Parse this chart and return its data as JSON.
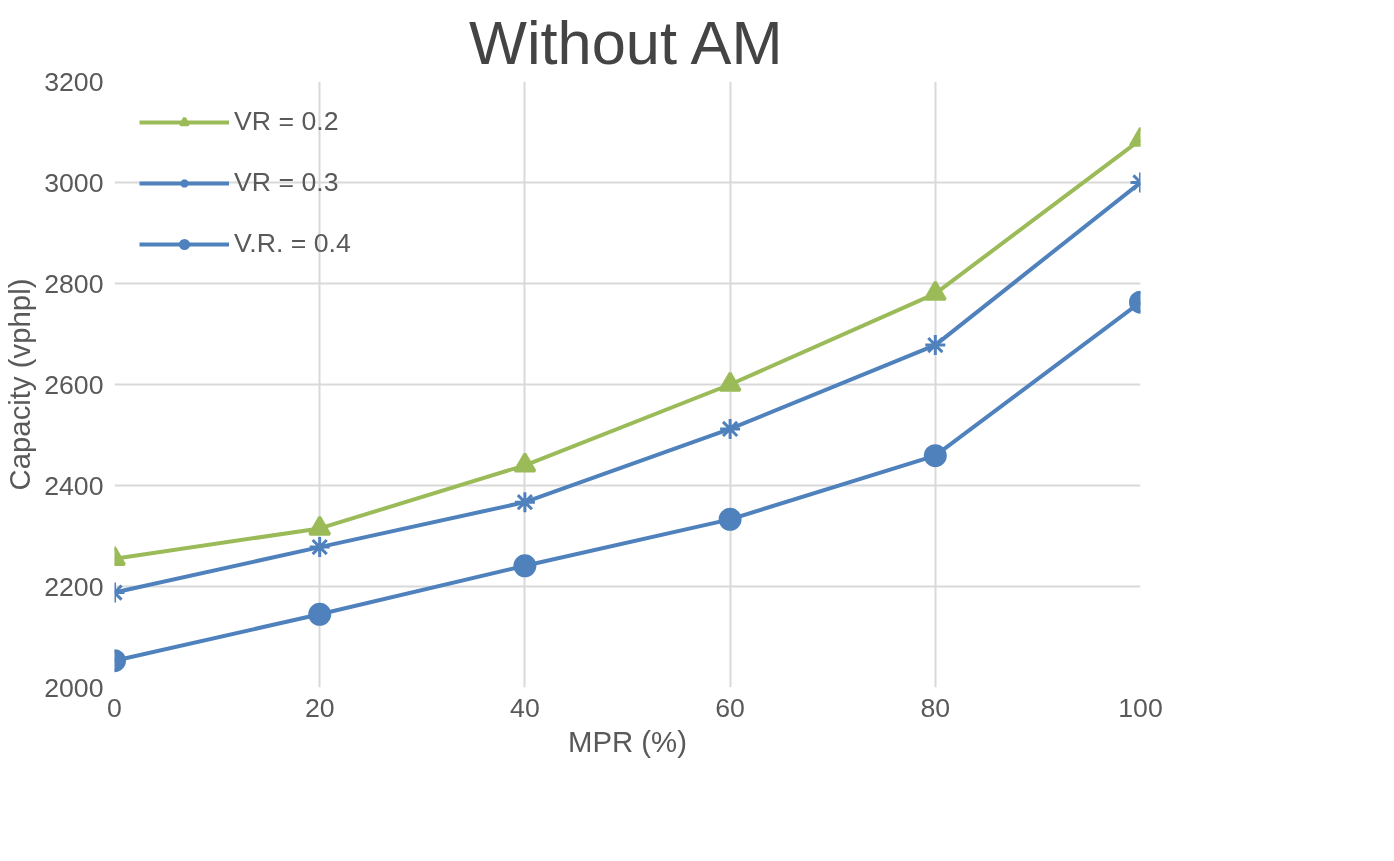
{
  "chart_data": {
    "type": "line",
    "title": "Without AM",
    "xlabel": "MPR (%)",
    "ylabel": "Capacity (vphpl)",
    "x": [
      0,
      20,
      40,
      60,
      80,
      100
    ],
    "series": [
      {
        "name": "VR = 0.2",
        "color": "#9bbb59",
        "marker": "triangle",
        "values": [
          2255,
          2315,
          2440,
          2600,
          2780,
          3085
        ]
      },
      {
        "name": "VR = 0.3",
        "color": "#4f81bd",
        "marker": "cross",
        "values": [
          2188,
          2278,
          2367,
          2512,
          2678,
          3000
        ]
      },
      {
        "name": "V.R. = 0.4",
        "color": "#4f81bd",
        "marker": "circle",
        "values": [
          2053,
          2145,
          2241,
          2333,
          2459,
          2763
        ]
      }
    ],
    "xlim": [
      0,
      100
    ],
    "xticks": [
      0,
      20,
      40,
      60,
      80,
      100
    ],
    "ylim": [
      2000,
      3200
    ],
    "yticks": [
      2000,
      2200,
      2400,
      2600,
      2800,
      3000,
      3200
    ],
    "grid": true,
    "legend": "top left",
    "line_style": "solid"
  }
}
